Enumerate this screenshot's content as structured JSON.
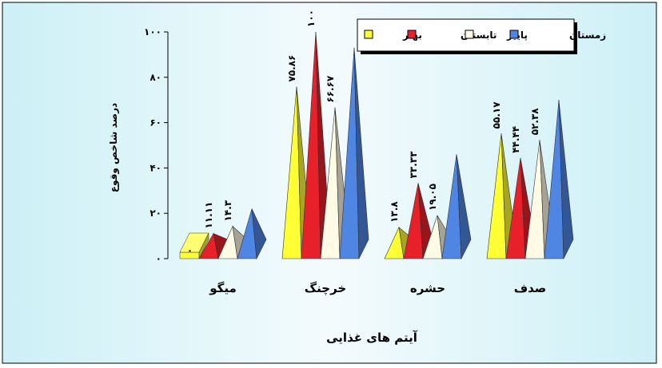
{
  "chart_data": {
    "type": "bar",
    "xlabel": "آیتم های غذایی",
    "ylabel": "درصد شاخص وقوع",
    "ylim": [
      0,
      100
    ],
    "yticks": [
      "۰",
      "۲۰",
      "۴۰",
      "۶۰",
      "۸۰",
      "۱۰۰"
    ],
    "categories": [
      "میگو",
      "خرچنگ",
      "حشره",
      "صدف"
    ],
    "legend_position": "top-right",
    "series": [
      {
        "name": "بهار",
        "color": "#ffff33",
        "values": [
          0,
          75.86,
          13.8,
          55.17
        ],
        "labels": [
          "۰",
          "۷۵.۸۶",
          "۱۳.۸",
          "۵۵.۱۷"
        ]
      },
      {
        "name": "تابستان",
        "color": "#e8202a",
        "values": [
          11.11,
          100,
          33.33,
          44.44
        ],
        "labels": [
          "۱۱.۱۱",
          "۱۰۰",
          "۳۳.۳۳",
          "۴۴.۴۴"
        ]
      },
      {
        "name": "پاییز",
        "color": "#fffbe4",
        "values": [
          14.3,
          66.67,
          19.05,
          52.38
        ],
        "labels": [
          "۱۴.۳",
          "۶۶.۶۷",
          "۱۹.۰۵",
          "۵۲.۳۸"
        ]
      },
      {
        "name": "زمستان",
        "color": "#4f86e4",
        "values": [
          22,
          93,
          46,
          70
        ],
        "labels": [
          "",
          "",
          "",
          ""
        ]
      }
    ]
  }
}
